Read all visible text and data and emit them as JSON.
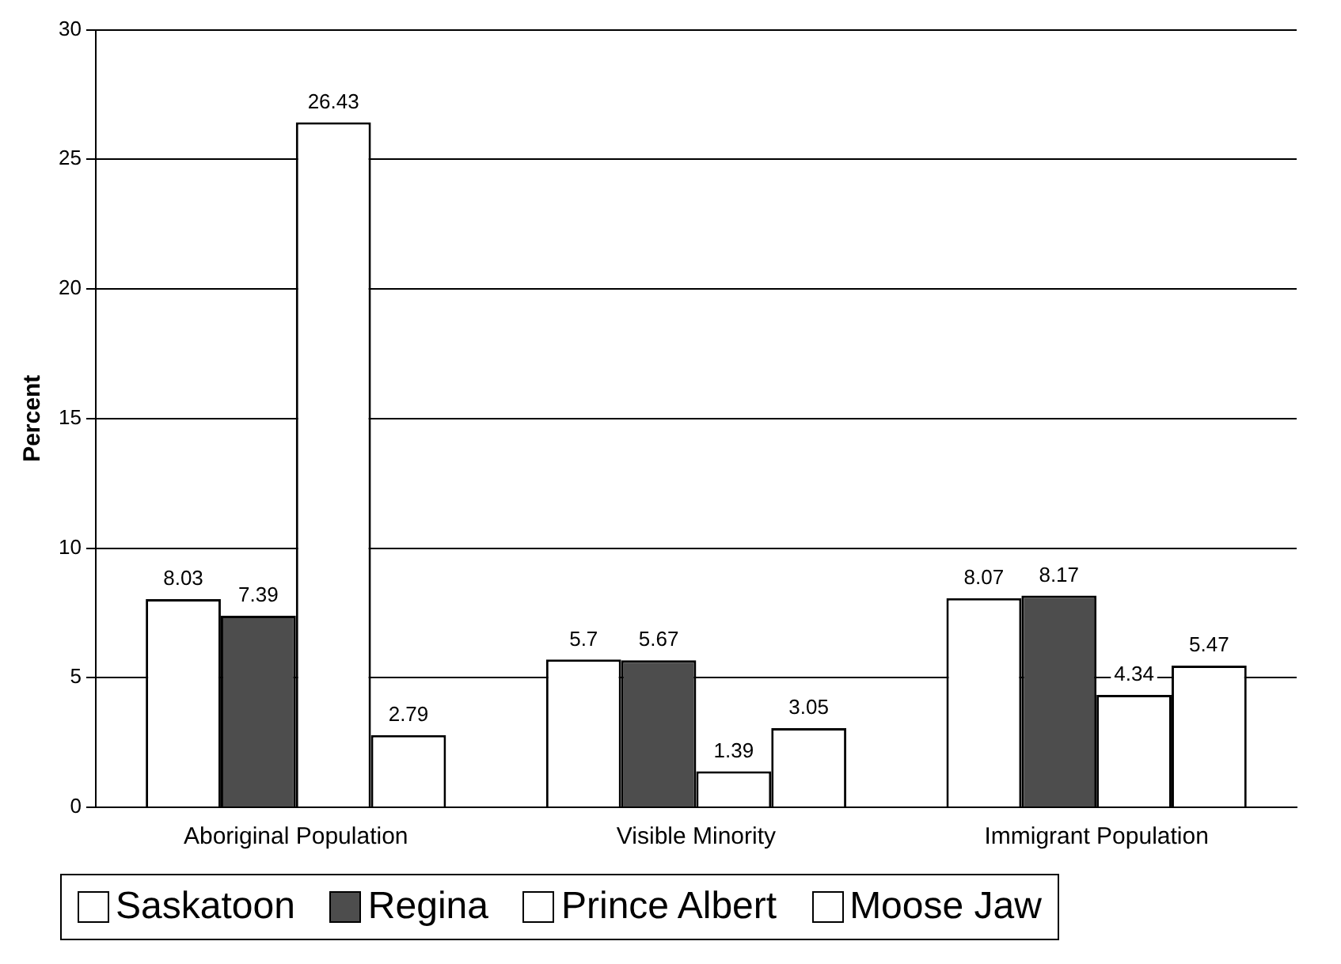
{
  "chart_data": {
    "type": "bar",
    "ylabel": "Percent",
    "categories": [
      "Aboriginal Population",
      "Visible Minority",
      "Immigrant Population"
    ],
    "series": [
      {
        "name": "Saskatoon",
        "color": "#ffffff",
        "values": [
          8.03,
          5.7,
          8.07
        ]
      },
      {
        "name": "Regina",
        "color": "#4d4d4d",
        "values": [
          7.39,
          5.67,
          8.17
        ]
      },
      {
        "name": "Prince Albert",
        "color": "#ffffff",
        "values": [
          26.43,
          1.39,
          4.34
        ]
      },
      {
        "name": "Moose Jaw",
        "color": "#ffffff",
        "values": [
          2.79,
          3.05,
          5.47
        ]
      }
    ],
    "ylim": [
      0,
      30
    ],
    "yticks": [
      0,
      5,
      10,
      15,
      20,
      25,
      30
    ],
    "grid": "y",
    "legend": "bottom",
    "data_labels": true
  }
}
